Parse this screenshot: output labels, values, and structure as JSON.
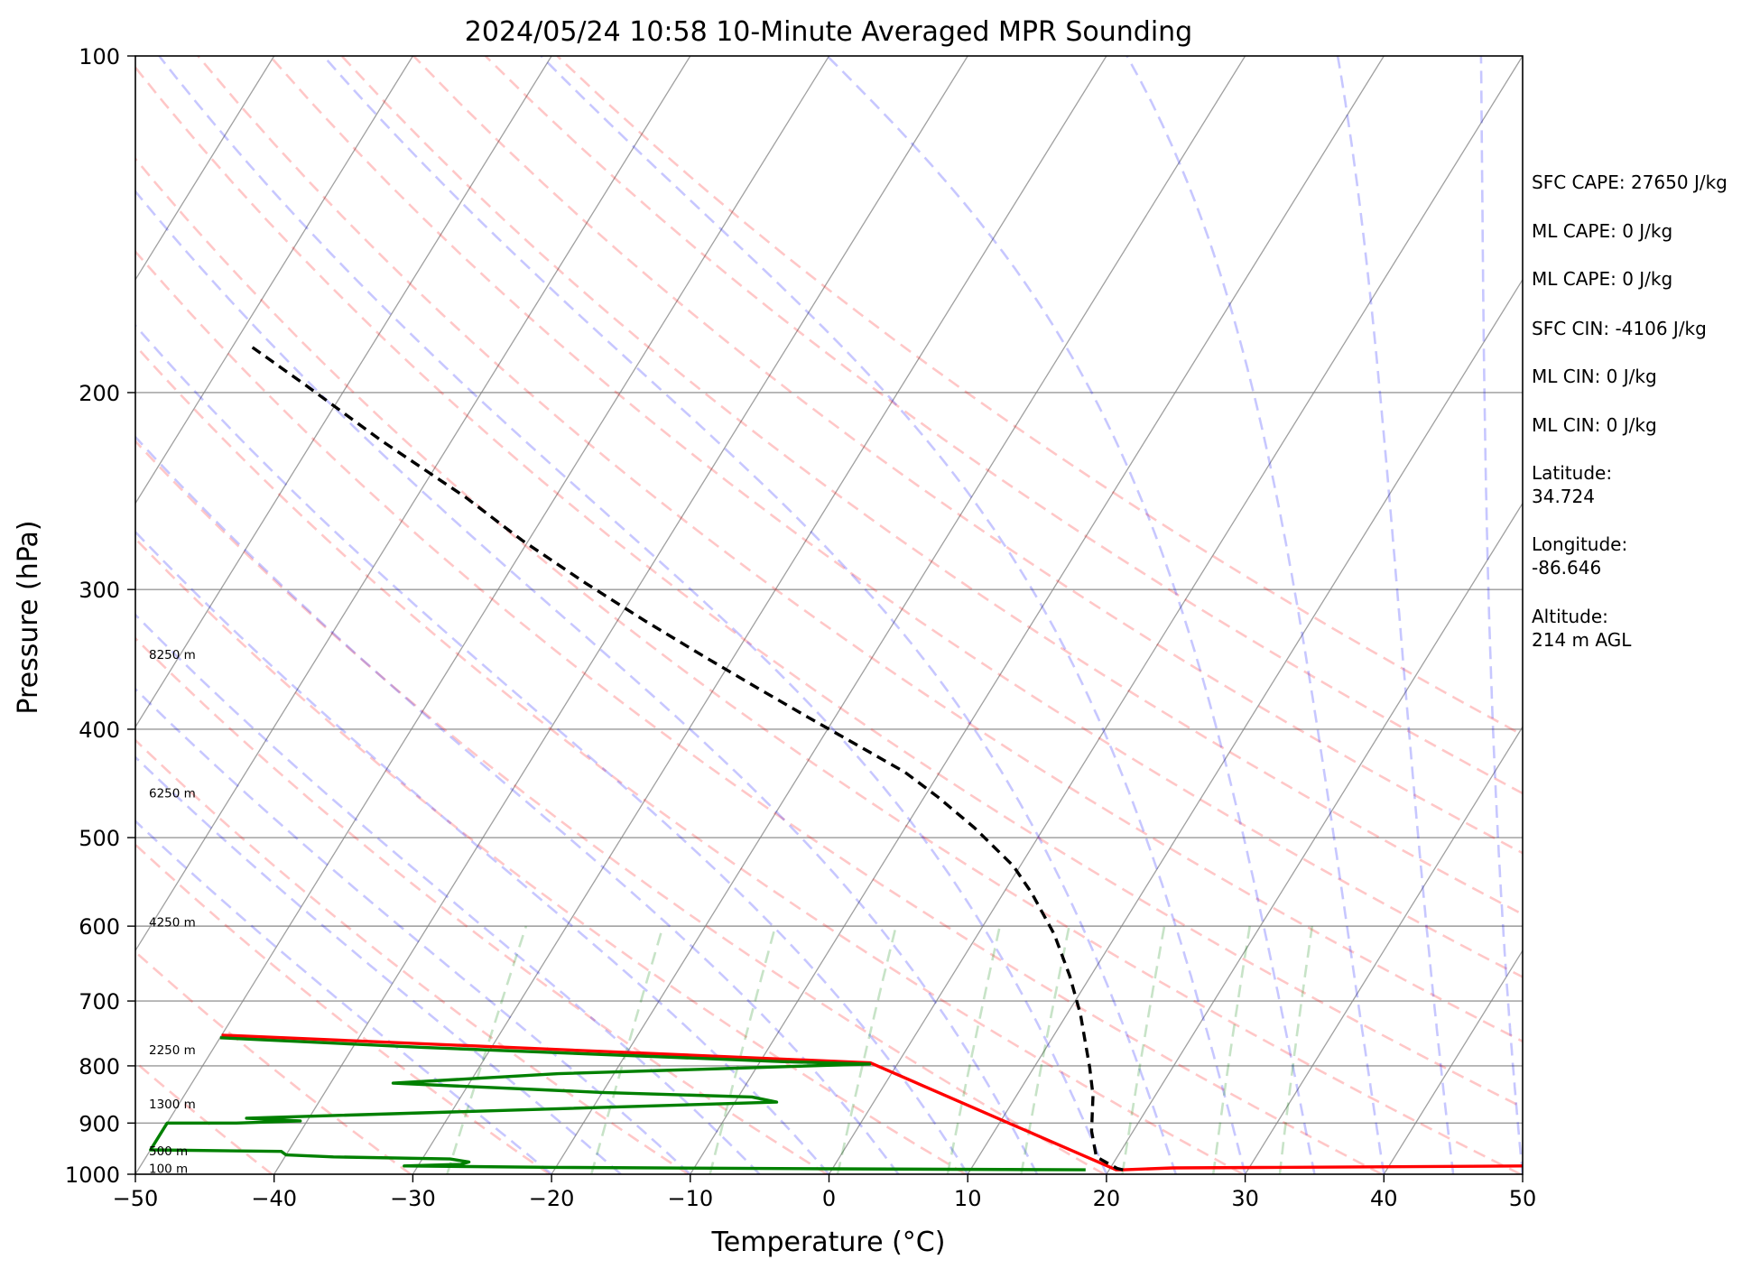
{
  "chart_data": {
    "type": "line",
    "title": "2024/05/24 10:58 10-Minute Averaged MPR Sounding",
    "xlabel": "Temperature (°C)",
    "ylabel": "Pressure (hPa)",
    "xlim": [
      -50,
      50
    ],
    "ylim": [
      1000,
      100
    ],
    "yscale": "log",
    "skew": "skew-T",
    "grid": true,
    "x_ticks": [
      -50,
      -40,
      -30,
      -20,
      -10,
      0,
      10,
      20,
      30,
      40,
      50
    ],
    "x_tick_labels": [
      "−50",
      "−40",
      "−30",
      "−20",
      "−10",
      "0",
      "10",
      "20",
      "30",
      "40",
      "50"
    ],
    "y_ticks": [
      1000,
      900,
      800,
      700,
      600,
      500,
      400,
      300,
      200,
      100
    ],
    "y_tick_labels": [
      "1000",
      "900",
      "800",
      "700",
      "600",
      "500",
      "400",
      "300",
      "200",
      "100"
    ],
    "height_labels": [
      {
        "text": "100 m",
        "p": 988
      },
      {
        "text": "500 m",
        "p": 953
      },
      {
        "text": "1300 m",
        "p": 865
      },
      {
        "text": "2250 m",
        "p": 774
      },
      {
        "text": "4250 m",
        "p": 595
      },
      {
        "text": "6250 m",
        "p": 456
      },
      {
        "text": "8250 m",
        "p": 343
      }
    ],
    "series": [
      {
        "role": "temperature",
        "color": "#ff0000",
        "points": [
          [
            50,
            983
          ],
          [
            32,
            986
          ],
          [
            24.5,
            987
          ],
          [
            21,
            991
          ],
          [
            20.5,
            991
          ],
          [
            -2,
            795
          ],
          [
            -50,
            751
          ]
        ]
      },
      {
        "role": "dewpoint",
        "color": "#008000",
        "points": [
          [
            18.3,
            991
          ],
          [
            0,
            989
          ],
          [
            -20,
            986
          ],
          [
            -31,
            983
          ],
          [
            -27,
            980
          ],
          [
            -26.5,
            975
          ],
          [
            -28,
            969
          ],
          [
            -36.5,
            965
          ],
          [
            -40,
            961
          ],
          [
            -40.5,
            954
          ],
          [
            -50,
            951
          ],
          [
            -50,
            900
          ],
          [
            -45,
            900
          ],
          [
            -40.5,
            896
          ],
          [
            -44.5,
            891
          ],
          [
            -7,
            862
          ],
          [
            -9,
            853
          ],
          [
            -20,
            845
          ],
          [
            -35.5,
            829
          ],
          [
            -24,
            813
          ],
          [
            -2,
            797
          ],
          [
            -8.5,
            793
          ],
          [
            -35,
            770
          ],
          [
            -50,
            755
          ]
        ]
      },
      {
        "role": "parcel",
        "color": "#000000",
        "dashed": true,
        "points": [
          [
            21,
            991
          ],
          [
            20.5,
            988
          ],
          [
            18.5,
            965
          ],
          [
            17,
            915
          ],
          [
            15.5,
            850
          ],
          [
            14,
            802
          ],
          [
            12.5,
            760
          ],
          [
            11,
            720
          ],
          [
            8.5,
            665
          ],
          [
            5.5,
            610
          ],
          [
            2,
            560
          ],
          [
            -0.5,
            530
          ],
          [
            -5,
            490
          ],
          [
            -9,
            460
          ],
          [
            -12.5,
            437
          ],
          [
            -17,
            414
          ],
          [
            -22,
            390
          ],
          [
            -27,
            367
          ],
          [
            -32,
            345
          ],
          [
            -38,
            320
          ],
          [
            -44,
            296
          ],
          [
            -50.5,
            271
          ],
          [
            -56.5,
            248
          ],
          [
            -65,
            221
          ],
          [
            -73,
            197
          ],
          [
            -79,
            181
          ]
        ]
      }
    ],
    "dry_adiabats_theta_K": [
      233,
      243,
      253,
      263,
      273,
      283,
      293,
      303,
      313,
      323,
      333,
      343,
      353,
      363,
      373,
      383,
      393
    ],
    "moist_adiabats_start_C": [
      -20,
      -15,
      -10,
      -5,
      0,
      5,
      10,
      15,
      20,
      25,
      30,
      35,
      40,
      45,
      50
    ],
    "mixing_ratio_lines_gkg": [
      0.4,
      1,
      2,
      4,
      7,
      10,
      16,
      24,
      32
    ]
  },
  "side_panel": [
    {
      "text": "SFC CAPE: 27650 J/kg"
    },
    {
      "text": "ML CAPE: 0 J/kg"
    },
    {
      "text": "ML CAPE: 0 J/kg"
    },
    {
      "text": "SFC CIN: -4106 J/kg"
    },
    {
      "text": "ML CIN: 0 J/kg"
    },
    {
      "text": "ML CIN: 0 J/kg"
    },
    {
      "text": "Latitude:"
    },
    {
      "text": "34.724"
    },
    {
      "text": "Longitude:"
    },
    {
      "text": "-86.646"
    },
    {
      "text": "Altitude:"
    },
    {
      "text": "214 m AGL"
    }
  ],
  "colors": {
    "dry_adiabat": "#ff0000",
    "moist_adiabat": "#0000ff",
    "mixing_ratio": "#008000",
    "isotherm": "#808080",
    "isobar": "#808080"
  }
}
